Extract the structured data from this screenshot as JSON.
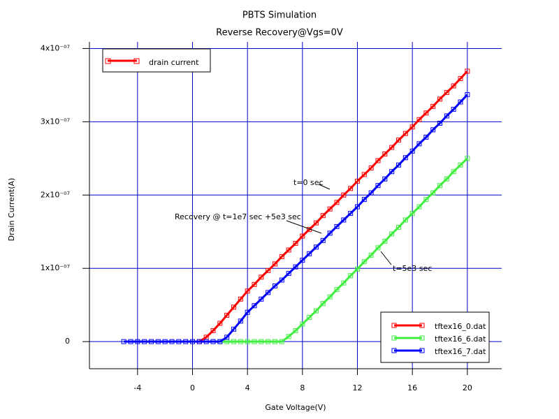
{
  "chart_data": {
    "type": "line",
    "title": "PBTS Simulation",
    "subtitle": "Reverse Recovery@Vgs=0V",
    "x_label": "Gate Voltage(V)",
    "y_label": "Drain Current(A)",
    "quantity_legend": {
      "name": "drain current",
      "color": "#ff0000"
    },
    "legend_position": "lower right",
    "grid": true,
    "grid_color": "#0000c8",
    "xlim": [
      -7.5,
      22.5
    ],
    "ylim": [
      -3.7e-08,
      4.09e-07
    ],
    "xticks": [
      -4,
      0,
      4,
      8,
      12,
      16,
      20
    ],
    "yticks": [
      0,
      {
        "value": 1e-07,
        "label": "1x10⁻⁰⁷"
      },
      {
        "value": 2e-07,
        "label": "2x10⁻⁰⁷"
      },
      {
        "value": 3e-07,
        "label": "3x10⁻⁰⁷"
      },
      {
        "value": 4e-07,
        "label": "4x10⁻⁰⁷"
      }
    ],
    "x": [
      -5,
      -4.5,
      -4,
      -3.5,
      -3,
      -2.5,
      -2,
      -1.5,
      -1,
      -0.5,
      0,
      0.5,
      1,
      1.5,
      2,
      2.5,
      3,
      3.5,
      4,
      4.5,
      5,
      5.5,
      6,
      6.5,
      7,
      7.5,
      8,
      8.5,
      9,
      9.5,
      10,
      10.5,
      11,
      11.5,
      12,
      12.5,
      13,
      13.5,
      14,
      14.5,
      15,
      15.5,
      16,
      16.5,
      17,
      17.5,
      18,
      18.5,
      19,
      19.5,
      20
    ],
    "series": [
      {
        "name": "tftex16_0.dat",
        "color": "#ff0000",
        "values": [
          null,
          null,
          null,
          null,
          null,
          null,
          null,
          null,
          null,
          null,
          null,
          0,
          6e-09,
          1.5e-08,
          2.5e-08,
          3.6e-08,
          4.7e-08,
          5.8e-08,
          6.9e-08,
          7.8e-08,
          8.8e-08,
          9.7e-08,
          1.06e-07,
          1.16e-07,
          1.25e-07,
          1.34e-07,
          1.44e-07,
          1.53e-07,
          1.62e-07,
          1.72e-07,
          1.81e-07,
          1.9e-07,
          2e-07,
          2.09e-07,
          2.19e-07,
          2.28e-07,
          2.37e-07,
          2.47e-07,
          2.56e-07,
          2.65e-07,
          2.75e-07,
          2.84e-07,
          2.93e-07,
          3.03e-07,
          3.12e-07,
          3.21e-07,
          3.31e-07,
          3.4e-07,
          3.49e-07,
          3.59e-07,
          3.69e-07
        ]
      },
      {
        "name": "tftex16_6.dat",
        "color": "#40ee40",
        "values": [
          null,
          null,
          null,
          null,
          null,
          null,
          null,
          null,
          null,
          null,
          null,
          null,
          null,
          null,
          0,
          0,
          0,
          0,
          0,
          0,
          0,
          0,
          0,
          0,
          7e-09,
          1.5e-08,
          2.4e-08,
          3.3e-08,
          4.2e-08,
          5.2e-08,
          6.1e-08,
          7.1e-08,
          8e-08,
          9e-08,
          9.9e-08,
          1.09e-07,
          1.18e-07,
          1.28e-07,
          1.37e-07,
          1.47e-07,
          1.56e-07,
          1.66e-07,
          1.75e-07,
          1.84e-07,
          1.94e-07,
          2.03e-07,
          2.13e-07,
          2.22e-07,
          2.32e-07,
          2.41e-07,
          2.5e-07
        ]
      },
      {
        "name": "tftex16_7.dat",
        "color": "#0000ff",
        "values": [
          0,
          0,
          0,
          0,
          0,
          0,
          0,
          0,
          0,
          0,
          0,
          0,
          0,
          0,
          0,
          6e-09,
          1.7e-08,
          2.8e-08,
          4e-08,
          4.9e-08,
          5.8e-08,
          6.7e-08,
          7.6e-08,
          8.4e-08,
          9.3e-08,
          1.02e-07,
          1.11e-07,
          1.2e-07,
          1.29e-07,
          1.38e-07,
          1.48e-07,
          1.57e-07,
          1.66e-07,
          1.75e-07,
          1.84e-07,
          1.94e-07,
          2.03e-07,
          2.13e-07,
          2.22e-07,
          2.32e-07,
          2.41e-07,
          2.51e-07,
          2.6e-07,
          2.7e-07,
          2.79e-07,
          2.89e-07,
          2.98e-07,
          3.08e-07,
          3.17e-07,
          3.27e-07,
          3.37e-07
        ]
      }
    ],
    "annotations": [
      "t=0 sec",
      "Recovery @ t=1e7 sec +5e3 sec",
      "t=5e3 sec"
    ]
  }
}
